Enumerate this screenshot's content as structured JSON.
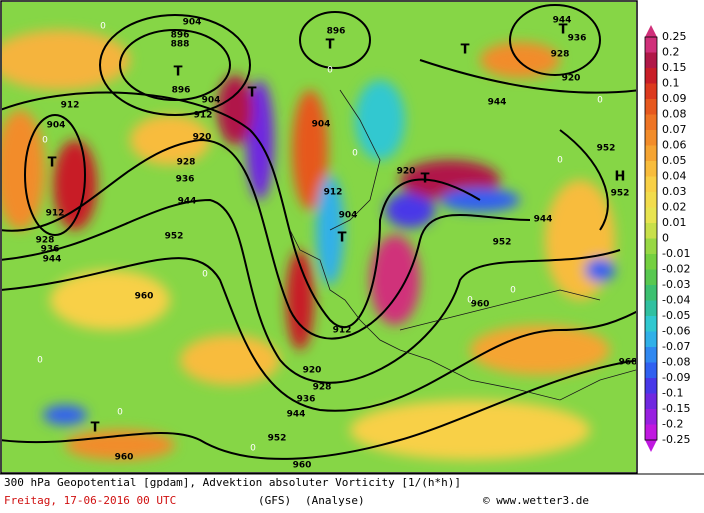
{
  "footer": {
    "line1": "300 hPa Geopotential [gpdam], Advektion absoluter Vorticity [1/(h*h)]",
    "date": "Freitag, 17-06-2016  00 UTC",
    "model": "(GFS)",
    "run": "(Analyse)",
    "credit": "© www.wetter3.de"
  },
  "legend": {
    "labels": [
      "0.25",
      "0.2",
      "0.15",
      "0.1",
      "0.09",
      "0.08",
      "0.07",
      "0.06",
      "0.05",
      "0.04",
      "0.03",
      "0.02",
      "0.01",
      "0",
      "-0.01",
      "-0.02",
      "-0.03",
      "-0.04",
      "-0.05",
      "-0.06",
      "-0.07",
      "-0.08",
      "-0.09",
      "-0.1",
      "-0.15",
      "-0.2",
      "-0.25"
    ],
    "colors": [
      "#d0307a",
      "#b01848",
      "#c81e28",
      "#dc3a1e",
      "#e6581e",
      "#ee7424",
      "#f28c2a",
      "#f5a432",
      "#f8bc3c",
      "#f8d046",
      "#f2dc4c",
      "#e8e450",
      "#c8e04a",
      "#98d844",
      "#74d040",
      "#58c850",
      "#3cc070",
      "#30c0a0",
      "#30c8d0",
      "#30b0e8",
      "#3088f0",
      "#3060f0",
      "#4838e8",
      "#7028e0",
      "#9820e0",
      "#c018e0"
    ]
  },
  "centers": [
    "T",
    "T",
    "T",
    "T",
    "T",
    "T",
    "T",
    "T",
    "H",
    "T"
  ],
  "contour_labels": [
    "904",
    "896",
    "888",
    "896",
    "904",
    "912",
    "904",
    "912",
    "920",
    "928",
    "936",
    "944",
    "912",
    "928",
    "936",
    "944",
    "952",
    "960",
    "896",
    "904",
    "912",
    "904",
    "920",
    "912",
    "920",
    "928",
    "936",
    "944",
    "952",
    "960",
    "944",
    "936",
    "928",
    "920",
    "944",
    "952",
    "952",
    "944",
    "952",
    "960",
    "960",
    "968"
  ],
  "zero_labels": [
    "0",
    "0",
    "0",
    "0",
    "0",
    "0",
    "0",
    "0",
    "0",
    "0",
    "0",
    "0"
  ]
}
